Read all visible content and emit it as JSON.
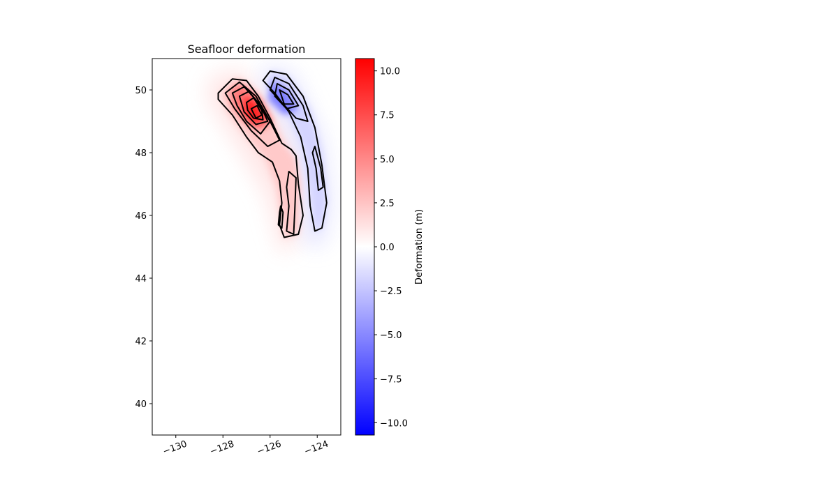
{
  "chart_data": {
    "type": "heatmap",
    "title": "Seafloor deformation",
    "xlabel": "",
    "ylabel": "",
    "xlim": [
      -131.0,
      -123.0
    ],
    "ylim": [
      39.0,
      51.0
    ],
    "x_ticks": [
      -130,
      -128,
      -126,
      -124
    ],
    "x_tick_labels": [
      "−130",
      "−128",
      "−126",
      "−124"
    ],
    "y_ticks": [
      40,
      42,
      44,
      46,
      48,
      50
    ],
    "y_tick_labels": [
      "40",
      "42",
      "44",
      "46",
      "48",
      "50"
    ],
    "colorbar": {
      "label": "Deformation (m)",
      "range": [
        -10.7,
        10.7
      ],
      "ticks": [
        10.0,
        7.5,
        5.0,
        2.5,
        0.0,
        -2.5,
        -5.0,
        -7.5,
        -10.0
      ],
      "tick_labels": [
        "10.0",
        "7.5",
        "5.0",
        "2.5",
        "0.0",
        "−2.5",
        "−5.0",
        "−7.5",
        "−10.0"
      ],
      "colormap": "bwr",
      "color_min": "#0000ff",
      "color_mid": "#ffffff",
      "color_max": "#ff0000"
    },
    "grid": false,
    "features": {
      "uplift_peak": {
        "lon": -126.6,
        "lat": 49.2,
        "value": 10.7
      },
      "subsidence_peak": {
        "lon": -125.6,
        "lat": 49.7,
        "value": -4.5
      },
      "uplift_zone_extent": {
        "lon": [
          -128.3,
          -124.5
        ],
        "lat": [
          45.3,
          50.4
        ]
      },
      "subsidence_zone_extent": {
        "lon": [
          -126.1,
          -123.5
        ],
        "lat": [
          45.5,
          50.7
        ]
      }
    },
    "contour_color": "#000000"
  }
}
